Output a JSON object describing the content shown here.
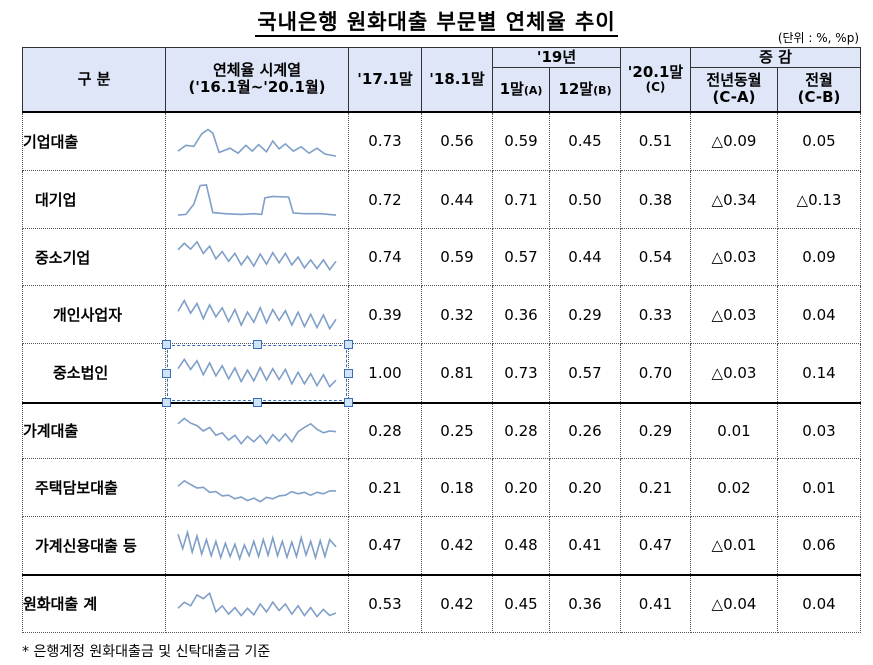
{
  "title": "국내은행 원화대출 부문별 연체율 추이",
  "unit": "(단위 : %, %p)",
  "header": {
    "category": "구 분",
    "series": "연체율 시계열",
    "series_range": "('16.1월~'20.1월)",
    "col_1701": "'17.1말",
    "col_1801": "'18.1말",
    "group_19": "'19년",
    "col_1901": "1말",
    "col_1901_tag": "(A)",
    "col_1912": "12말",
    "col_1912_tag": "(B)",
    "col_2001": "'20.1말",
    "col_2001_tag": "(C)",
    "group_change": "증 감",
    "col_yoy": "전년동월",
    "col_yoy_tag": "(C-A)",
    "col_mom": "전월",
    "col_mom_tag": "(C-B)"
  },
  "rows": [
    {
      "label": "기업대출",
      "v1701": "0.73",
      "v1801": "0.56",
      "v1901": "0.59",
      "v1912": "0.45",
      "v2001": "0.51",
      "yoy": "△0.09",
      "mom": "0.05",
      "spark": "corp"
    },
    {
      "label": "대기업",
      "v1701": "0.72",
      "v1801": "0.44",
      "v1901": "0.71",
      "v1912": "0.50",
      "v2001": "0.38",
      "yoy": "△0.34",
      "mom": "△0.13",
      "spark": "large"
    },
    {
      "label": "중소기업",
      "v1701": "0.74",
      "v1801": "0.59",
      "v1901": "0.57",
      "v1912": "0.44",
      "v2001": "0.54",
      "yoy": "△0.03",
      "mom": "0.09",
      "spark": "sme"
    },
    {
      "label": "개인사업자",
      "v1701": "0.39",
      "v1801": "0.32",
      "v1901": "0.36",
      "v1912": "0.29",
      "v2001": "0.33",
      "yoy": "△0.03",
      "mom": "0.04",
      "spark": "indiv"
    },
    {
      "label": "중소법인",
      "v1701": "1.00",
      "v1801": "0.81",
      "v1901": "0.73",
      "v1912": "0.57",
      "v2001": "0.70",
      "yoy": "△0.03",
      "mom": "0.14",
      "spark": "smecorp"
    },
    {
      "label": "가계대출",
      "v1701": "0.28",
      "v1801": "0.25",
      "v1901": "0.28",
      "v1912": "0.26",
      "v2001": "0.29",
      "yoy": "0.01",
      "mom": "0.03",
      "spark": "house"
    },
    {
      "label": "주택담보대출",
      "v1701": "0.21",
      "v1801": "0.18",
      "v1901": "0.20",
      "v1912": "0.20",
      "v2001": "0.21",
      "yoy": "0.02",
      "mom": "0.01",
      "spark": "mortgage"
    },
    {
      "label": "가계신용대출 등",
      "v1701": "0.47",
      "v1801": "0.42",
      "v1901": "0.48",
      "v1912": "0.41",
      "v2001": "0.47",
      "yoy": "△0.01",
      "mom": "0.06",
      "spark": "credit"
    },
    {
      "label": "원화대출 계",
      "v1701": "0.53",
      "v1801": "0.42",
      "v1901": "0.45",
      "v1912": "0.36",
      "v2001": "0.41",
      "yoy": "△0.04",
      "mom": "0.04",
      "spark": "total"
    }
  ],
  "footnote": "* 은행계정 원화대출금 및 신탁대출금 기준",
  "colors": {
    "header_bg": "#dfe6f7",
    "spark": "#7f9fc8"
  }
}
